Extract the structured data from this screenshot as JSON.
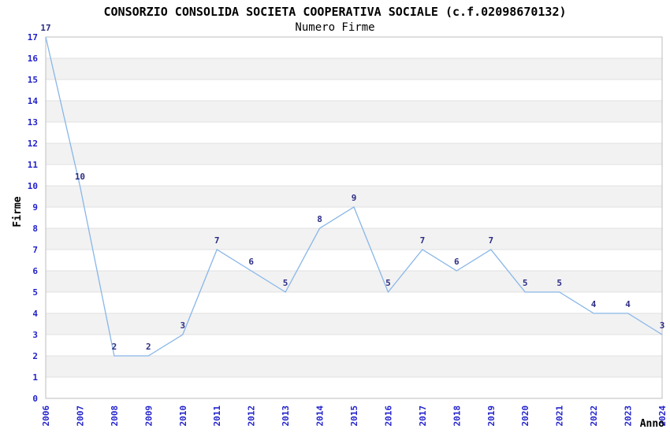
{
  "title": "CONSORZIO CONSOLIDA SOCIETA COOPERATIVA SOCIALE (c.f.02098670132)",
  "subtitle": "Numero Firme",
  "chart_data": {
    "type": "line",
    "x": [
      2006,
      2007,
      2008,
      2009,
      2010,
      2011,
      2012,
      2013,
      2014,
      2015,
      2016,
      2017,
      2018,
      2019,
      2020,
      2021,
      2022,
      2023,
      2024
    ],
    "series": [
      {
        "name": "Numero Firme",
        "values": [
          17,
          10,
          2,
          2,
          3,
          7,
          6,
          5,
          8,
          9,
          5,
          7,
          6,
          7,
          5,
          5,
          4,
          4,
          3
        ]
      }
    ],
    "title": "CONSORZIO CONSOLIDA SOCIETA COOPERATIVA SOCIALE (c.f.02098670132)",
    "subtitle": "Numero Firme",
    "xlabel": "Anno",
    "ylabel": "Firme",
    "ylim": [
      0,
      17
    ],
    "ytick_step": 1,
    "xtick_rotation": -90,
    "grid": true,
    "background_bands": "alternating horizontal stripes between odd and even y values",
    "legend_position": "none",
    "data_labels_visible": true,
    "colors": {
      "line": "#88b6e9",
      "tick_label": "#2222cc",
      "data_label": "#2d2d85",
      "band": "#f2f2f2",
      "gridline": "#e0e0e0",
      "border": "#bdbdbd",
      "text": "#000000"
    }
  }
}
